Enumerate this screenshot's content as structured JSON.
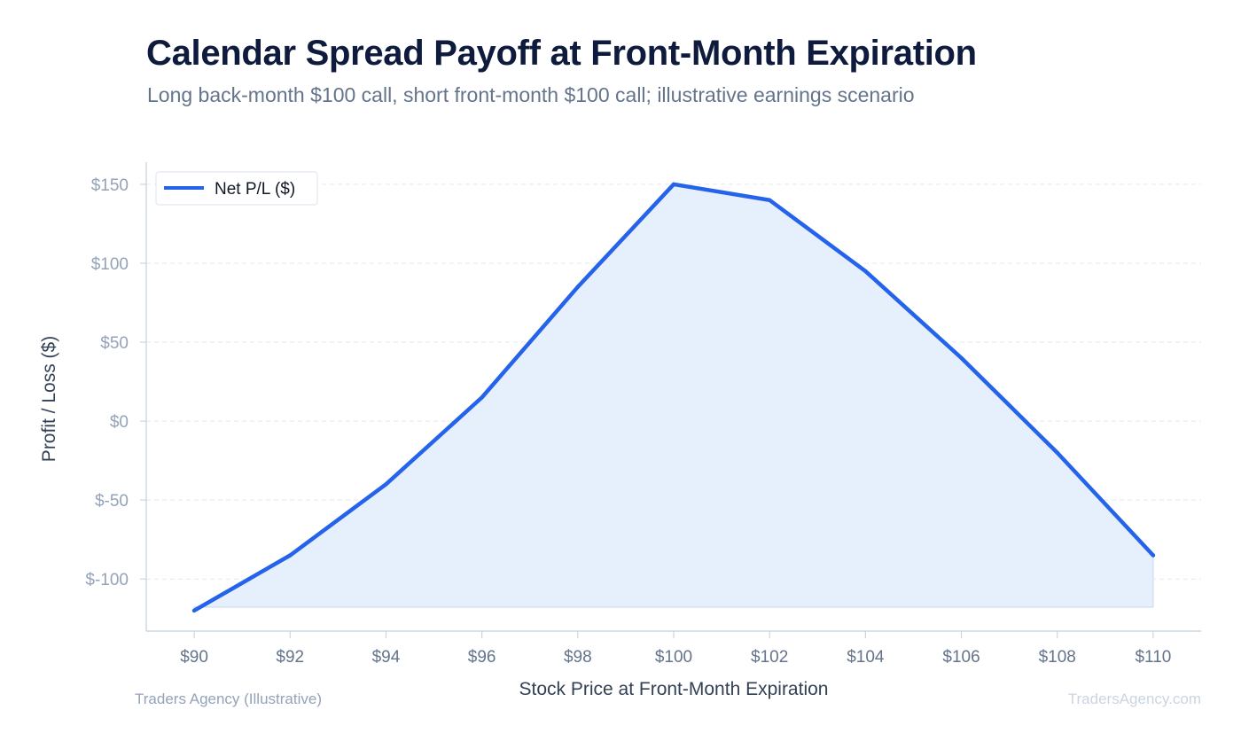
{
  "title": "Calendar Spread Payoff at Front-Month Expiration",
  "subtitle": "Long back-month $100 call, short front-month $100 call; illustrative earnings scenario",
  "footer": {
    "source": "Traders Agency (Illustrative)",
    "watermark": "TradersAgency.com"
  },
  "colors": {
    "line": "#2563eb",
    "fill": "#e6effc",
    "grid": "#e2e8f0",
    "axis": "#cbd5e1",
    "tick_text": "#94a3b8",
    "x_tick_text": "#64748b",
    "label_text": "#334155"
  },
  "chart_data": {
    "type": "area",
    "title": "Calendar Spread Payoff at Front-Month Expiration",
    "subtitle": "Long back-month $100 call, short front-month $100 call; illustrative earnings scenario",
    "xlabel": "Stock Price at Front-Month Expiration",
    "ylabel": "Profit / Loss ($)",
    "x": [
      90,
      92,
      94,
      96,
      98,
      100,
      102,
      104,
      106,
      108,
      110
    ],
    "xticklabels": [
      "$90",
      "$92",
      "$94",
      "$96",
      "$98",
      "$100",
      "$102",
      "$104",
      "$106",
      "$108",
      "$110"
    ],
    "yticks": [
      -100,
      -50,
      0,
      50,
      100,
      150
    ],
    "yticklabels": [
      "$-100",
      "$-50",
      "$0",
      "$50",
      "$100",
      "$150"
    ],
    "xlim": [
      89,
      111
    ],
    "ylim": [
      -133,
      164
    ],
    "grid": "horizontal dashed",
    "legend": "top-left",
    "series": [
      {
        "name": "Net P/L ($)",
        "values": [
          -120,
          -85,
          -40,
          15,
          85,
          150,
          140,
          95,
          40,
          -20,
          -85
        ]
      }
    ]
  }
}
